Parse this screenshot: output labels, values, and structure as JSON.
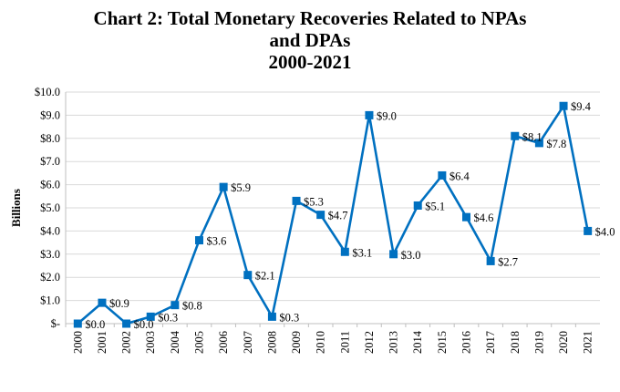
{
  "chart_data": {
    "type": "line",
    "title_lines": [
      "Chart 2: Total Monetary Recoveries Related to NPAs",
      "and DPAs",
      "2000-2021"
    ],
    "ylabel": "Billions",
    "xlabel": "",
    "categories": [
      "2000",
      "2001",
      "2002",
      "2003",
      "2004",
      "2005",
      "2006",
      "2007",
      "2008",
      "2009",
      "2010",
      "2011",
      "2012",
      "2013",
      "2014",
      "2015",
      "2016",
      "2017",
      "2018",
      "2019",
      "2020",
      "2021"
    ],
    "series": [
      {
        "color": "#0070C0",
        "values": [
          0.0,
          0.9,
          0.0,
          0.3,
          0.8,
          3.6,
          5.9,
          2.1,
          0.3,
          5.3,
          4.7,
          3.1,
          9.0,
          3.0,
          5.1,
          6.4,
          4.6,
          2.7,
          8.1,
          7.8,
          9.4,
          4.0
        ],
        "labels": [
          "$0.0",
          "$0.9",
          "$0.0",
          "$0.3",
          "$0.8",
          "$3.6",
          "$5.9",
          "$2.1",
          "$0.3",
          "$5.3",
          "$4.7",
          "$3.1",
          "$9.0",
          "$3.0",
          "$5.1",
          "$6.4",
          "$4.6",
          "$2.7",
          "$8.1",
          "$7.8",
          "$9.4",
          "$4.0"
        ]
      }
    ],
    "y_ticks": [
      0,
      1,
      2,
      3,
      4,
      5,
      6,
      7,
      8,
      9,
      10
    ],
    "y_tick_labels": [
      "$-",
      "$1.0",
      "$2.0",
      "$3.0",
      "$4.0",
      "$5.0",
      "$6.0",
      "$7.0",
      "$8.0",
      "$9.0",
      "$10.0"
    ],
    "ylim": [
      0,
      10
    ],
    "grid": true,
    "legend": "none"
  }
}
